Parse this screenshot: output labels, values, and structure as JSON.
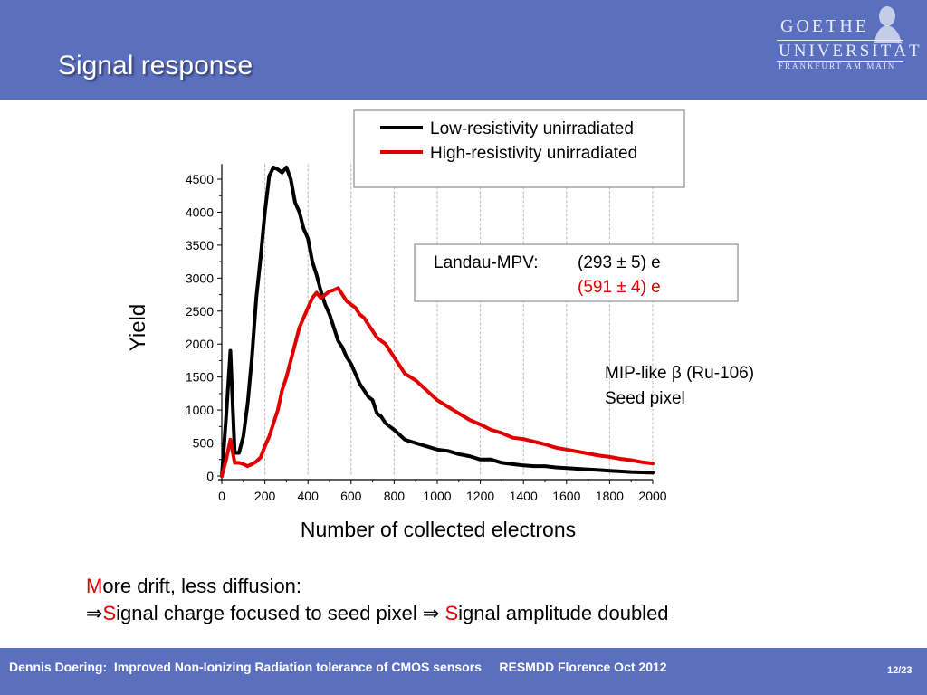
{
  "slide": {
    "title": "Signal response",
    "logo": {
      "line1": "GOETHE",
      "line2": "UNIVERSITÄT",
      "line3": "FRANKFURT AM MAIN"
    },
    "bottom_text": {
      "line1_first": "M",
      "line1_rest": "ore drift, less diffusion:",
      "line2_arrow": "⇒",
      "line2_first": "S",
      "line2_middle": "ignal charge focused to seed pixel ⇒ ",
      "line2_second": "S",
      "line2_rest": "ignal amplitude doubled"
    },
    "footer": {
      "text": "Dennis Doering:  Improved Non-Ionizing Radiation tolerance of CMOS sensors     RESMDD Florence Oct 2012",
      "page": "12/23"
    },
    "colors": {
      "header": "#5b6fbf",
      "accent_red": "#e00000"
    }
  },
  "chart_data": {
    "type": "line",
    "xlabel": "Number of collected electrons",
    "ylabel": "Yield",
    "xlim": [
      0,
      2000
    ],
    "ylim": [
      0,
      4700
    ],
    "x_ticks": [
      0,
      200,
      400,
      600,
      800,
      1000,
      1200,
      1400,
      1600,
      1800,
      2000
    ],
    "y_ticks": [
      0,
      500,
      1000,
      1500,
      2000,
      2500,
      3000,
      3500,
      4000,
      4500
    ],
    "grid": "vertical dashed",
    "legend_position": "top-right",
    "series": [
      {
        "name": "Low-resistivity unirradiated",
        "color": "#000000",
        "x": [
          0,
          20,
          40,
          60,
          80,
          100,
          120,
          140,
          160,
          180,
          200,
          220,
          240,
          260,
          280,
          300,
          320,
          340,
          360,
          380,
          400,
          420,
          440,
          460,
          480,
          500,
          520,
          540,
          560,
          580,
          600,
          620,
          640,
          660,
          680,
          700,
          720,
          740,
          760,
          780,
          800,
          850,
          900,
          950,
          1000,
          1050,
          1100,
          1150,
          1200,
          1250,
          1300,
          1350,
          1400,
          1450,
          1500,
          1550,
          1600,
          1650,
          1700,
          1750,
          1800,
          1850,
          1900,
          1950,
          2000
        ],
        "y": [
          0,
          900,
          1900,
          350,
          350,
          600,
          1100,
          1800,
          2700,
          3300,
          4000,
          4550,
          4680,
          4650,
          4600,
          4680,
          4500,
          4150,
          4000,
          3750,
          3600,
          3250,
          3050,
          2800,
          2600,
          2450,
          2250,
          2050,
          1950,
          1800,
          1700,
          1550,
          1400,
          1300,
          1200,
          1150,
          950,
          900,
          800,
          750,
          700,
          550,
          500,
          450,
          400,
          380,
          330,
          300,
          250,
          250,
          200,
          180,
          160,
          150,
          150,
          130,
          120,
          110,
          100,
          90,
          80,
          70,
          60,
          55,
          50
        ]
      },
      {
        "name": "High-resistivity unirradiated",
        "color": "#e00000",
        "x": [
          0,
          20,
          40,
          60,
          80,
          100,
          120,
          140,
          160,
          180,
          200,
          220,
          240,
          260,
          280,
          300,
          320,
          340,
          360,
          380,
          400,
          420,
          440,
          460,
          480,
          500,
          520,
          540,
          560,
          580,
          600,
          620,
          640,
          660,
          680,
          700,
          720,
          740,
          760,
          780,
          800,
          850,
          900,
          950,
          1000,
          1050,
          1100,
          1150,
          1200,
          1250,
          1300,
          1350,
          1400,
          1450,
          1500,
          1550,
          1600,
          1650,
          1700,
          1750,
          1800,
          1850,
          1900,
          1950,
          2000
        ],
        "y": [
          0,
          250,
          550,
          200,
          200,
          180,
          150,
          180,
          220,
          280,
          450,
          600,
          800,
          1000,
          1300,
          1500,
          1750,
          2000,
          2250,
          2400,
          2550,
          2700,
          2780,
          2700,
          2750,
          2800,
          2820,
          2850,
          2750,
          2650,
          2600,
          2550,
          2450,
          2400,
          2300,
          2200,
          2100,
          2050,
          2000,
          1900,
          1800,
          1550,
          1450,
          1300,
          1150,
          1050,
          950,
          850,
          780,
          700,
          650,
          580,
          560,
          520,
          480,
          430,
          400,
          370,
          340,
          310,
          290,
          260,
          240,
          210,
          190
        ]
      }
    ],
    "annotations": {
      "mpv_label": "Landau-MPV:",
      "mpv_low": "(293 ± 5) e",
      "mpv_high": "(591 ± 4) e",
      "source_line1": "MIP-like β (Ru-106)",
      "source_line2": "Seed pixel"
    }
  }
}
